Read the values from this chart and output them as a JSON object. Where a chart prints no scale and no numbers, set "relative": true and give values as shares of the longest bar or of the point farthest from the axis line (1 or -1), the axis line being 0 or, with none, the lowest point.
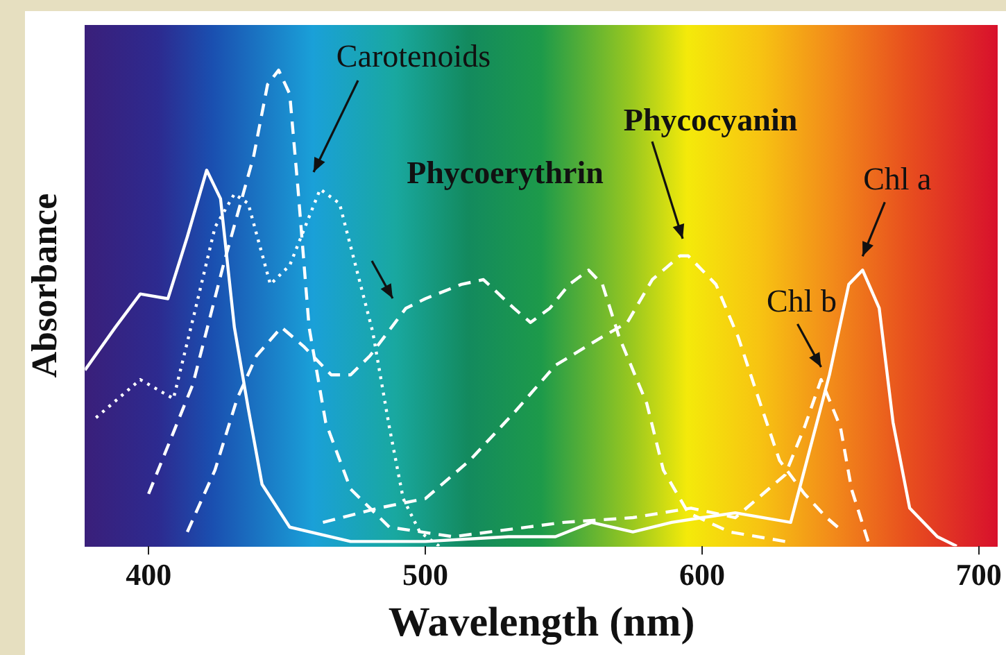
{
  "chart_data": {
    "type": "line",
    "xlabel": "Wavelength (nm)",
    "ylabel": "Absorbance",
    "relative": true,
    "xlim": [
      377,
      707
    ],
    "xticks": [
      400,
      500,
      600,
      700
    ],
    "annotations": [
      {
        "text": "Chl a",
        "x": 658,
        "y": 0.58
      },
      {
        "text": "Chl b",
        "x": 643,
        "y": 0.35
      },
      "Carotenoids",
      "Phycoerythrin",
      "Phycocyanin"
    ],
    "series": [
      {
        "color": "#ffffff",
        "line_style": "solid",
        "x": [
          377,
          388,
          397,
          407,
          414,
          421,
          426,
          431,
          436,
          441,
          451,
          473,
          500,
          530,
          547,
          560,
          575,
          589,
          600,
          612,
          632,
          646,
          653,
          658,
          664,
          669,
          675,
          685,
          692
        ],
        "values": [
          0.37,
          0.46,
          0.53,
          0.52,
          0.65,
          0.79,
          0.73,
          0.46,
          0.29,
          0.13,
          0.04,
          0.01,
          0.01,
          0.02,
          0.02,
          0.05,
          0.03,
          0.05,
          0.06,
          0.07,
          0.05,
          0.36,
          0.55,
          0.58,
          0.5,
          0.26,
          0.08,
          0.02,
          0
        ]
      },
      {
        "color": "#ffffff",
        "line_style": "dashed",
        "x": [
          400,
          416,
          427,
          438,
          443,
          447,
          451,
          454,
          458,
          464,
          473,
          487,
          510,
          550,
          575,
          596,
          612,
          630,
          637,
          643,
          650,
          654,
          660
        ],
        "values": [
          0.11,
          0.34,
          0.59,
          0.82,
          0.97,
          1,
          0.95,
          0.75,
          0.46,
          0.26,
          0.12,
          0.04,
          0.02,
          0.05,
          0.06,
          0.08,
          0.06,
          0.15,
          0.25,
          0.35,
          0.25,
          0.12,
          0.01
        ]
      },
      {
        "color": "#ffffff",
        "line_style": "dotted",
        "x": [
          381,
          397,
          409,
          417,
          424,
          431,
          436,
          444,
          451,
          462,
          469,
          481,
          487,
          492,
          498,
          505
        ],
        "values": [
          0.27,
          0.35,
          0.31,
          0.5,
          0.67,
          0.74,
          0.72,
          0.55,
          0.59,
          0.75,
          0.72,
          0.45,
          0.25,
          0.1,
          0.03,
          0
        ]
      },
      {
        "color": "#ffffff",
        "line_style": "dashed",
        "x": [
          414,
          424,
          432,
          439,
          448,
          456,
          466,
          473,
          480,
          493,
          500,
          513,
          521,
          532,
          538,
          545,
          552,
          559,
          564,
          570,
          580,
          586,
          595,
          610,
          630
        ],
        "values": [
          0.03,
          0.16,
          0.31,
          0.4,
          0.46,
          0.42,
          0.36,
          0.36,
          0.4,
          0.5,
          0.52,
          0.55,
          0.56,
          0.5,
          0.47,
          0.5,
          0.55,
          0.58,
          0.55,
          0.44,
          0.3,
          0.16,
          0.07,
          0.03,
          0.01
        ]
      },
      {
        "color": "#ffffff",
        "line_style": "dashed",
        "x": [
          463,
          483,
          500,
          516,
          532,
          547,
          564,
          573,
          582,
          592,
          595,
          605,
          613,
          621,
          628,
          637,
          645,
          649
        ],
        "values": [
          0.05,
          0.08,
          0.1,
          0.18,
          0.28,
          0.38,
          0.44,
          0.47,
          0.56,
          0.61,
          0.61,
          0.55,
          0.44,
          0.3,
          0.18,
          0.11,
          0.06,
          0.04
        ]
      }
    ]
  }
}
